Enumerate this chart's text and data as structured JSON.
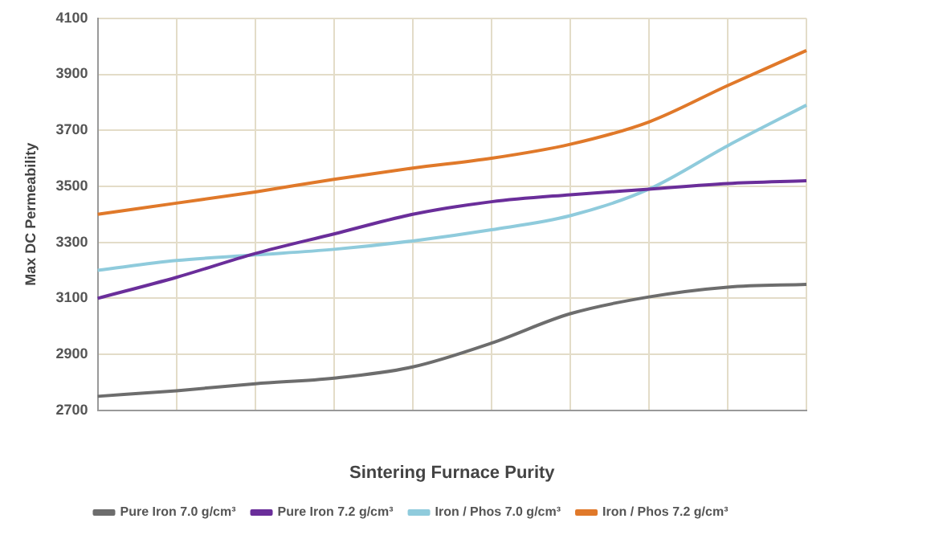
{
  "chart_data": {
    "type": "line",
    "xlabel": "Sintering Furnace Purity",
    "ylabel": "Max DC Permeability",
    "categories": [
      null,
      null,
      null,
      null,
      null,
      null,
      null,
      null,
      null,
      null
    ],
    "series": [
      {
        "name": "Pure Iron 7.0 g/cm³",
        "color": "#6d6d6d",
        "values": [
          2750,
          2770,
          2795,
          2815,
          2855,
          2940,
          3045,
          3105,
          3140,
          3150
        ]
      },
      {
        "name": "Pure Iron 7.2 g/cm³",
        "color": "#6a2e9a",
        "values": [
          3100,
          3175,
          3260,
          3330,
          3400,
          3445,
          3470,
          3490,
          3510,
          3520
        ]
      },
      {
        "name": "Iron / Phos 7.0 g/cm³",
        "color": "#8fcbdc",
        "values": [
          3200,
          3235,
          3255,
          3275,
          3305,
          3345,
          3395,
          3490,
          3645,
          3790
        ]
      },
      {
        "name": "Iron / Phos 7.2 g/cm³",
        "color": "#e0792a",
        "values": [
          3400,
          3440,
          3480,
          3525,
          3565,
          3600,
          3650,
          3730,
          3860,
          3985
        ]
      }
    ],
    "ylim": [
      2700,
      4100
    ],
    "yticks": [
      2700,
      2900,
      3100,
      3300,
      3500,
      3700,
      3900,
      4100
    ],
    "grid": true,
    "legend": "bottom",
    "marker": "none",
    "line_style": "solid"
  }
}
